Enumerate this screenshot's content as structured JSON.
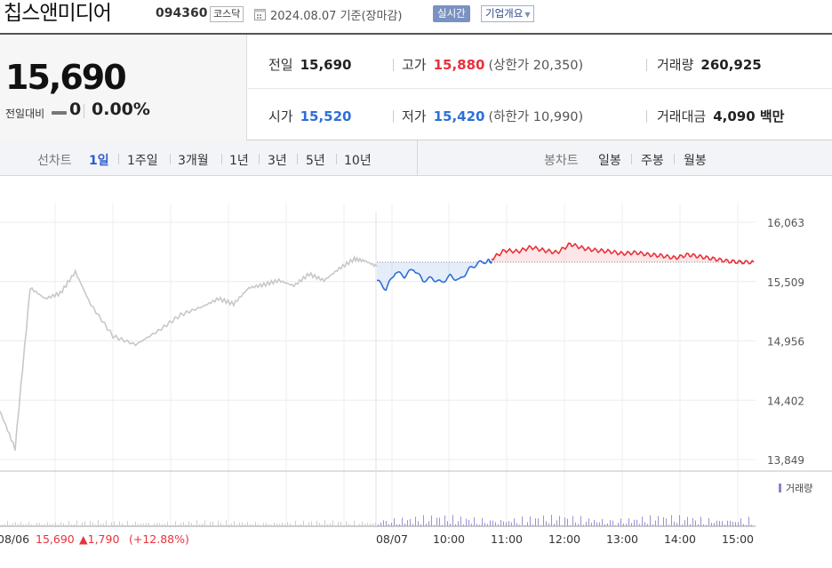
{
  "header": {
    "name": "칩스앤미디어",
    "code": "094360",
    "market": "코스닥",
    "date": "2024.08.07 기준(장마감)",
    "realtime_label": "실시간",
    "company_label": "기업개요"
  },
  "summary": {
    "price": "15,690",
    "change_label": "전일대비",
    "change_value": "0",
    "change_pct": "0.00%",
    "stats": {
      "prev_close": {
        "label": "전일",
        "value": "15,690"
      },
      "high": {
        "label": "고가",
        "value": "15,880",
        "sub": "(상한가 20,350)"
      },
      "volume": {
        "label": "거래량",
        "value": "260,925"
      },
      "open": {
        "label": "시가",
        "value": "15,520"
      },
      "low": {
        "label": "저가",
        "value": "15,420",
        "sub": "(하한가 10,990)"
      },
      "amount": {
        "label": "거래대금",
        "value": "4,090 백만"
      }
    }
  },
  "tabs": {
    "line_label": "선차트",
    "periods": [
      "1일",
      "1주일",
      "3개월",
      "1년",
      "3년",
      "5년",
      "10년"
    ],
    "active_period": "1일",
    "candle_label": "봉차트",
    "candle_periods": [
      "일봉",
      "주봉",
      "월봉"
    ]
  },
  "footer": {
    "prev_date": "08/06",
    "prev_price": "15,690",
    "prev_change": "▲1,790",
    "prev_pct": "(+12.88%)"
  },
  "colors": {
    "up": "#e8323c",
    "down": "#2f6fd6",
    "prev_day": "#c8c8c8",
    "accent": "#2f5bd0"
  },
  "chart_data": {
    "type": "line",
    "ylim": [
      13849,
      16063
    ],
    "y_ticks": [
      "16,063",
      "15,509",
      "14,956",
      "14,402",
      "13,849"
    ],
    "x_ticks": [
      "08/07",
      "10:00",
      "11:00",
      "12:00",
      "13:00",
      "14:00",
      "15:00"
    ],
    "volume_label": "거래량",
    "reference_price": 15690,
    "series": [
      {
        "x": [
          0,
          0.04,
          0.08,
          0.12,
          0.16,
          0.2,
          0.24,
          0.3,
          0.36,
          0.42,
          0.48,
          0.54,
          0.58,
          0.62,
          0.66,
          0.7,
          0.74,
          0.78,
          0.82,
          0.86,
          0.9,
          0.94,
          0.97,
          1.0
        ],
        "values": [
          14300,
          13950,
          15450,
          15350,
          15400,
          15600,
          15300,
          15000,
          14920,
          15050,
          15200,
          15280,
          15350,
          15300,
          15450,
          15480,
          15520,
          15470,
          15580,
          15520,
          15630,
          15720,
          15700,
          15650
        ]
      },
      {
        "x": [
          0,
          0.08,
          0.16,
          0.24,
          0.32,
          0.4,
          0.48,
          0.56,
          0.64,
          0.72,
          0.8,
          0.88,
          0.96,
          1.0
        ],
        "values": [
          15520,
          15440,
          15600,
          15560,
          15630,
          15520,
          15540,
          15500,
          15560,
          15520,
          15620,
          15680,
          15700,
          15700
        ]
      },
      {
        "x": [
          0,
          0.05,
          0.1,
          0.15,
          0.2,
          0.25,
          0.3,
          0.35,
          0.4,
          0.45,
          0.5,
          0.55,
          0.6,
          0.65,
          0.7,
          0.75,
          0.8,
          0.85,
          0.9,
          0.95,
          1.0
        ],
        "values": [
          15720,
          15800,
          15790,
          15830,
          15800,
          15780,
          15860,
          15820,
          15800,
          15790,
          15770,
          15780,
          15760,
          15750,
          15730,
          15760,
          15740,
          15720,
          15700,
          15690,
          15690
        ]
      }
    ]
  }
}
